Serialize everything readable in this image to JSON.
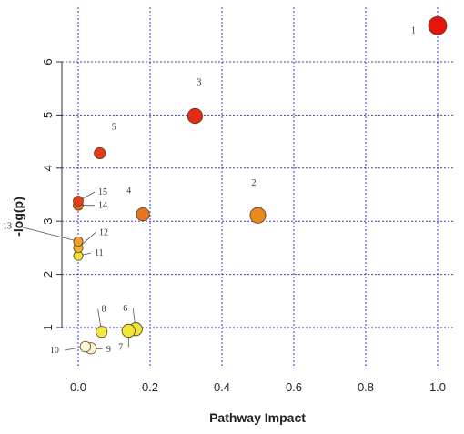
{
  "chart_data": {
    "type": "scatter",
    "title": "",
    "xlabel": "Pathway Impact",
    "ylabel": "-log(p)",
    "xlim": [
      0,
      1.0
    ],
    "ylim": [
      0.2,
      7.0
    ],
    "x_ticks": [
      "0.0",
      "0.2",
      "0.4",
      "0.6",
      "0.8",
      "1.0"
    ],
    "y_ticks": [
      "1",
      "2",
      "3",
      "4",
      "5",
      "6"
    ],
    "grid": true,
    "points": [
      {
        "label": "1",
        "x": 1.0,
        "y": 6.68,
        "size": 1.0,
        "color": "#e8130b"
      },
      {
        "label": "2",
        "x": 0.5,
        "y": 3.11,
        "size": 0.8,
        "color": "#e98a1f"
      },
      {
        "label": "3",
        "x": 0.325,
        "y": 4.98,
        "size": 0.75,
        "color": "#e82a15"
      },
      {
        "label": "4",
        "x": 0.18,
        "y": 3.13,
        "size": 0.6,
        "color": "#e6751f"
      },
      {
        "label": "5",
        "x": 0.06,
        "y": 4.28,
        "size": 0.45,
        "color": "#e23a1a"
      },
      {
        "label": "6",
        "x": 0.16,
        "y": 0.97,
        "size": 0.6,
        "color": "#f0e638"
      },
      {
        "label": "7",
        "x": 0.14,
        "y": 0.94,
        "size": 0.6,
        "color": "#f0e638"
      },
      {
        "label": "8",
        "x": 0.065,
        "y": 0.92,
        "size": 0.45,
        "color": "#f1e848"
      },
      {
        "label": "9",
        "x": 0.035,
        "y": 0.61,
        "size": 0.45,
        "color": "#fbf7d8"
      },
      {
        "label": "10",
        "x": 0.02,
        "y": 0.64,
        "size": 0.4,
        "color": "#fbf7d8"
      },
      {
        "label": "11",
        "x": 0.0,
        "y": 2.35,
        "size": 0.3,
        "color": "#f0e232"
      },
      {
        "label": "12",
        "x": 0.0,
        "y": 2.5,
        "size": 0.3,
        "color": "#f0b832"
      },
      {
        "label": "13",
        "x": 0.0,
        "y": 2.62,
        "size": 0.3,
        "color": "#eea030"
      },
      {
        "label": "14",
        "x": 0.0,
        "y": 3.3,
        "size": 0.35,
        "color": "#e8641f"
      },
      {
        "label": "15",
        "x": 0.0,
        "y": 3.38,
        "size": 0.35,
        "color": "#e43f1a"
      }
    ]
  }
}
